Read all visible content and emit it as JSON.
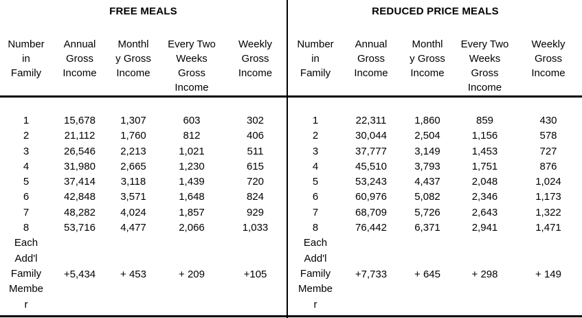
{
  "colors": {
    "background": "#ffffff",
    "text": "#000000",
    "line": "#000000"
  },
  "sections": [
    {
      "title": "FREE MEALS",
      "columns": [
        "Number\nin\nFamily",
        "Annual\nGross\nIncome",
        "Monthl\ny Gross\nIncome",
        "Every Two\nWeeks\nGross\nIncome",
        "Weekly\nGross\nIncome"
      ],
      "rows": [
        [
          "1",
          "15,678",
          "1,307",
          "603",
          "302"
        ],
        [
          "2",
          "21,112",
          "1,760",
          "812",
          "406"
        ],
        [
          "3",
          "26,546",
          "2,213",
          "1,021",
          "511"
        ],
        [
          "4",
          "31,980",
          "2,665",
          "1,230",
          "615"
        ],
        [
          "5",
          "37,414",
          "3,118",
          "1,439",
          "720"
        ],
        [
          "6",
          "42,848",
          "3,571",
          "1,648",
          "824"
        ],
        [
          "7",
          "48,282",
          "4,024",
          "1,857",
          "929"
        ],
        [
          "8",
          "53,716",
          "4,477",
          "2,066",
          "1,033"
        ]
      ],
      "addl": {
        "label": "Each\nAdd'l\nFamily\nMembe\nr",
        "values": [
          "+5,434",
          "+ 453",
          "+ 209",
          "+105"
        ]
      }
    },
    {
      "title": "REDUCED PRICE MEALS",
      "columns": [
        "Number\nin\nFamily",
        "Annual\nGross\nIncome",
        "Monthl\ny Gross\nIncome",
        "Every Two\nWeeks\nGross\nIncome",
        "Weekly\nGross\nIncome"
      ],
      "rows": [
        [
          "1",
          "22,311",
          "1,860",
          "859",
          "430"
        ],
        [
          "2",
          "30,044",
          "2,504",
          "1,156",
          "578"
        ],
        [
          "3",
          "37,777",
          "3,149",
          "1,453",
          "727"
        ],
        [
          "4",
          "45,510",
          "3,793",
          "1,751",
          "876"
        ],
        [
          "5",
          "53,243",
          "4,437",
          "2,048",
          "1,024"
        ],
        [
          "6",
          "60,976",
          "5,082",
          "2,346",
          "1,173"
        ],
        [
          "7",
          "68,709",
          "5,726",
          "2,643",
          "1,322"
        ],
        [
          "8",
          "76,442",
          "6,371",
          "2,941",
          "1,471"
        ]
      ],
      "addl": {
        "label": "Each\nAdd'l\nFamily\nMembe\nr",
        "values": [
          "+7,733",
          "+ 645",
          "+ 298",
          "+ 149"
        ]
      }
    }
  ]
}
